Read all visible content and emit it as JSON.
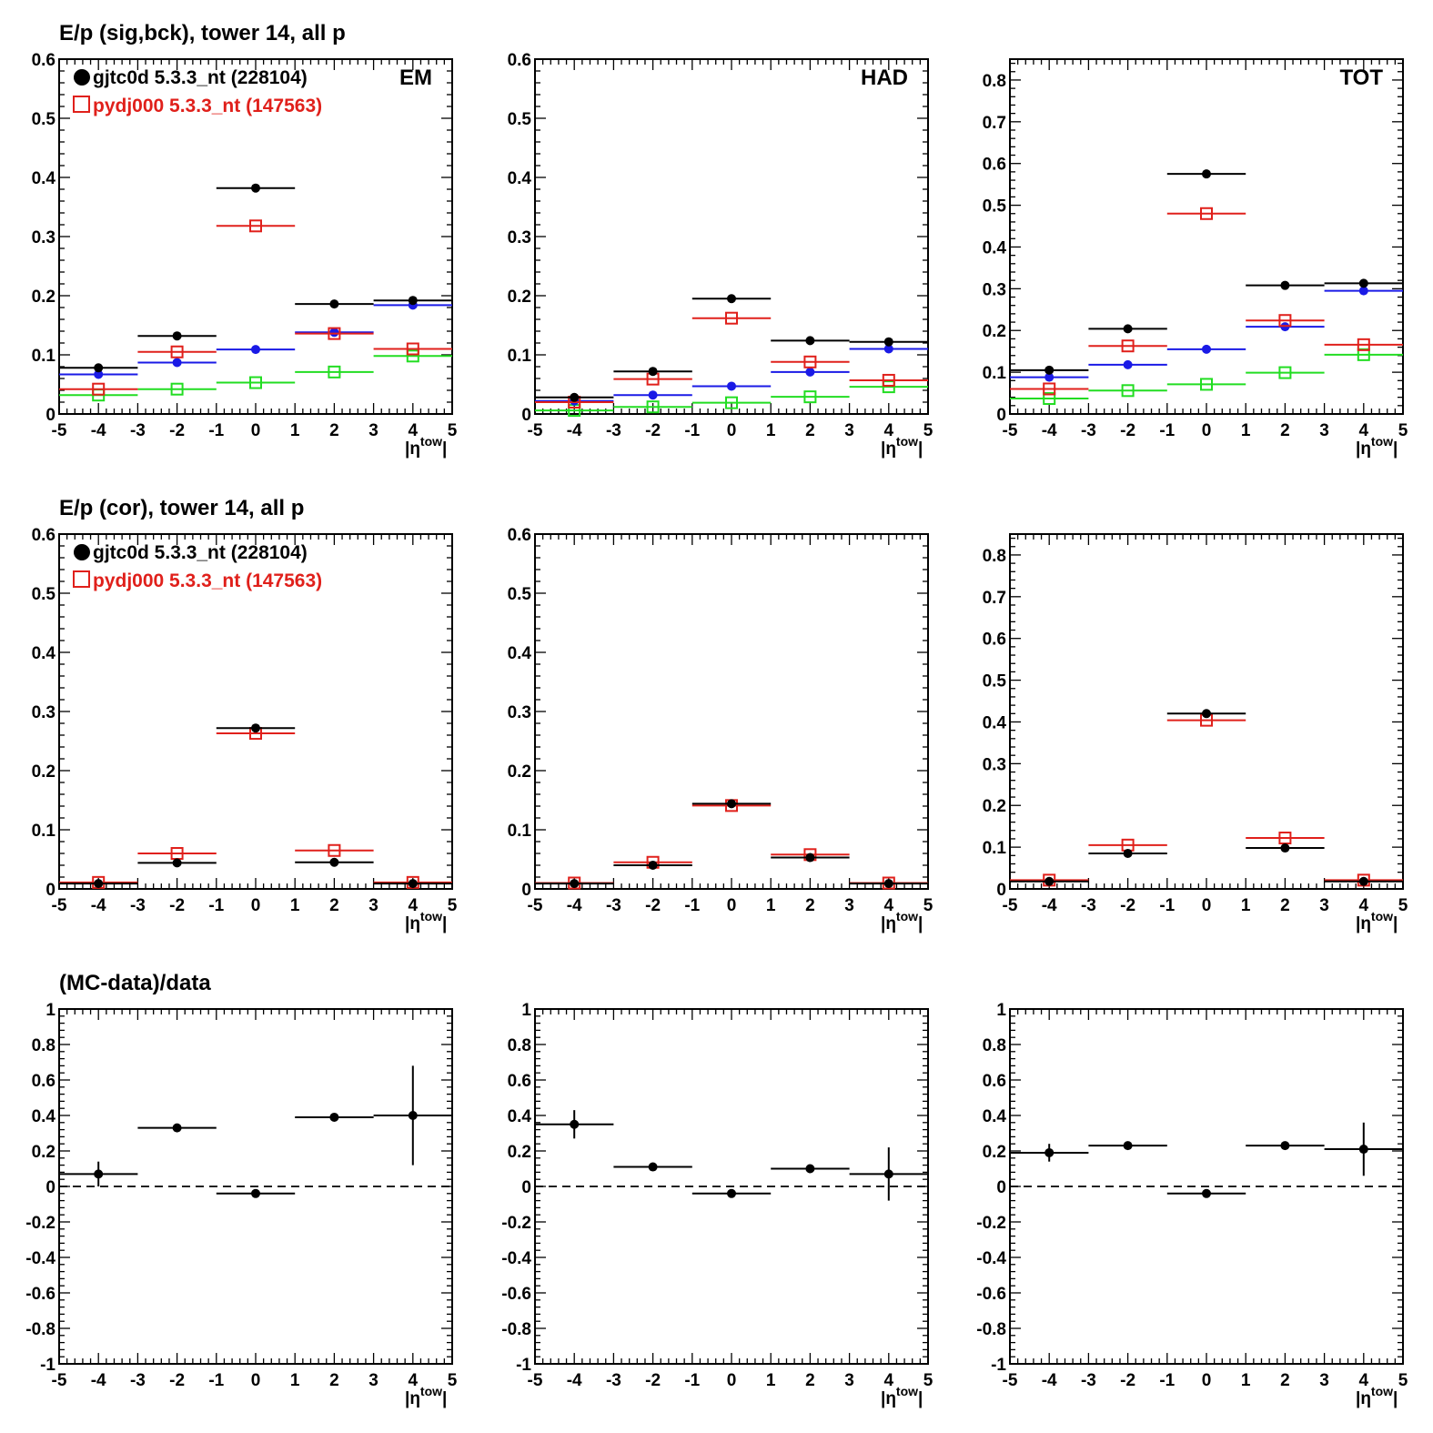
{
  "figure": {
    "row_titles": [
      "E/p (sig,bck), tower 14, all p",
      "E/p (cor), tower 14, all p",
      "(MC-data)/data"
    ],
    "legend": {
      "data_label": "gjtc0d 5.3.3_nt (228104)",
      "mc_label": "pydj000 5.3.3_nt (147563)"
    },
    "panel_labels": [
      "EM",
      "HAD",
      "TOT"
    ],
    "x_axis": {
      "label_main": "|η",
      "label_sup": "tow",
      "label_end": "|",
      "ticks": [
        "-5",
        "-4",
        "-3",
        "-2",
        "-1",
        "0",
        "1",
        "2",
        "3",
        "4",
        "5"
      ],
      "range": [
        -5,
        5
      ]
    },
    "colors": {
      "data": "#000000",
      "mc": "#e0201b",
      "blue": "#1a1ae6",
      "green": "#22dd22",
      "reference_line": "#000000"
    }
  },
  "chart_data": [
    {
      "type": "scatter",
      "row": 0,
      "col": 0,
      "panel_label": "EM",
      "ylim": [
        0,
        0.6
      ],
      "yticks": [
        "0",
        "0.1",
        "0.2",
        "0.3",
        "0.4",
        "0.5",
        "0.6"
      ],
      "x": [
        -4,
        -2,
        0,
        2,
        4
      ],
      "xerr": 1,
      "series": [
        {
          "name": "gjtc0d 5.3.3_nt (228104)",
          "style": "dot",
          "color": "black",
          "values": [
            0.078,
            0.132,
            0.382,
            0.186,
            0.192
          ]
        },
        {
          "name": "pydj000 5.3.3_nt (147563)",
          "style": "open-square",
          "color": "red",
          "values": [
            0.042,
            0.105,
            0.318,
            0.136,
            0.11
          ]
        },
        {
          "style": "dot",
          "color": "blue",
          "values": [
            0.067,
            0.087,
            0.109,
            0.138,
            0.184
          ]
        },
        {
          "style": "open-square",
          "color": "green",
          "values": [
            0.032,
            0.042,
            0.053,
            0.071,
            0.098
          ]
        }
      ]
    },
    {
      "type": "scatter",
      "row": 0,
      "col": 1,
      "panel_label": "HAD",
      "ylim": [
        0,
        0.6
      ],
      "yticks": [
        "0",
        "0.1",
        "0.2",
        "0.3",
        "0.4",
        "0.5",
        "0.6"
      ],
      "x": [
        -4,
        -2,
        0,
        2,
        4
      ],
      "xerr": 1,
      "series": [
        {
          "style": "dot",
          "color": "black",
          "values": [
            0.028,
            0.072,
            0.195,
            0.124,
            0.122
          ]
        },
        {
          "style": "open-square",
          "color": "red",
          "values": [
            0.02,
            0.059,
            0.162,
            0.088,
            0.057
          ]
        },
        {
          "style": "dot",
          "color": "blue",
          "values": [
            0.022,
            0.032,
            0.047,
            0.071,
            0.11
          ]
        },
        {
          "style": "open-square",
          "color": "green",
          "values": [
            0.006,
            0.012,
            0.019,
            0.029,
            0.046
          ]
        }
      ]
    },
    {
      "type": "scatter",
      "row": 0,
      "col": 2,
      "panel_label": "TOT",
      "ylim": [
        0,
        0.85
      ],
      "yticks": [
        "0",
        "0.1",
        "0.2",
        "0.3",
        "0.4",
        "0.5",
        "0.6",
        "0.7",
        "0.8"
      ],
      "x": [
        -4,
        -2,
        0,
        2,
        4
      ],
      "xerr": 1,
      "series": [
        {
          "style": "dot",
          "color": "black",
          "values": [
            0.105,
            0.204,
            0.575,
            0.308,
            0.313
          ]
        },
        {
          "style": "open-square",
          "color": "red",
          "values": [
            0.06,
            0.163,
            0.48,
            0.224,
            0.166
          ]
        },
        {
          "style": "dot",
          "color": "blue",
          "values": [
            0.088,
            0.118,
            0.155,
            0.209,
            0.295
          ]
        },
        {
          "style": "open-square",
          "color": "green",
          "values": [
            0.037,
            0.056,
            0.071,
            0.099,
            0.142
          ]
        }
      ]
    },
    {
      "type": "scatter",
      "row": 1,
      "col": 0,
      "ylim": [
        0,
        0.6
      ],
      "yticks": [
        "0",
        "0.1",
        "0.2",
        "0.3",
        "0.4",
        "0.5",
        "0.6"
      ],
      "x": [
        -4,
        -2,
        0,
        2,
        4
      ],
      "xerr": 1,
      "series": [
        {
          "name": "gjtc0d 5.3.3_nt (228104)",
          "style": "dot",
          "color": "black",
          "values": [
            0.009,
            0.044,
            0.272,
            0.045,
            0.009
          ]
        },
        {
          "name": "pydj000 5.3.3_nt (147563)",
          "style": "open-square",
          "color": "red",
          "values": [
            0.011,
            0.06,
            0.263,
            0.065,
            0.011
          ]
        }
      ]
    },
    {
      "type": "scatter",
      "row": 1,
      "col": 1,
      "ylim": [
        0,
        0.6
      ],
      "yticks": [
        "0",
        "0.1",
        "0.2",
        "0.3",
        "0.4",
        "0.5",
        "0.6"
      ],
      "x": [
        -4,
        -2,
        0,
        2,
        4
      ],
      "xerr": 1,
      "series": [
        {
          "style": "dot",
          "color": "black",
          "values": [
            0.009,
            0.04,
            0.144,
            0.053,
            0.009
          ]
        },
        {
          "style": "open-square",
          "color": "red",
          "values": [
            0.01,
            0.045,
            0.141,
            0.058,
            0.01
          ]
        }
      ]
    },
    {
      "type": "scatter",
      "row": 1,
      "col": 2,
      "ylim": [
        0,
        0.85
      ],
      "yticks": [
        "0",
        "0.1",
        "0.2",
        "0.3",
        "0.4",
        "0.5",
        "0.6",
        "0.7",
        "0.8"
      ],
      "x": [
        -4,
        -2,
        0,
        2,
        4
      ],
      "xerr": 1,
      "series": [
        {
          "style": "dot",
          "color": "black",
          "values": [
            0.018,
            0.085,
            0.42,
            0.098,
            0.018
          ]
        },
        {
          "style": "open-square",
          "color": "red",
          "values": [
            0.021,
            0.105,
            0.404,
            0.122,
            0.021
          ]
        }
      ]
    },
    {
      "type": "scatter",
      "row": 2,
      "col": 0,
      "ylim": [
        -1,
        1
      ],
      "yticks": [
        "-1",
        "-0.8",
        "-0.6",
        "-0.4",
        "-0.2",
        "0",
        "0.2",
        "0.4",
        "0.6",
        "0.8",
        "1"
      ],
      "reference_line": 0,
      "x": [
        -4,
        -2,
        0,
        2,
        4
      ],
      "xerr": 1,
      "series": [
        {
          "style": "dot",
          "color": "black",
          "values": [
            0.07,
            0.33,
            -0.04,
            0.39,
            0.4
          ],
          "yerr": [
            0.07,
            0.01,
            0.01,
            0.01,
            0.28
          ]
        }
      ]
    },
    {
      "type": "scatter",
      "row": 2,
      "col": 1,
      "ylim": [
        -1,
        1
      ],
      "yticks": [
        "-1",
        "-0.8",
        "-0.6",
        "-0.4",
        "-0.2",
        "0",
        "0.2",
        "0.4",
        "0.6",
        "0.8",
        "1"
      ],
      "reference_line": 0,
      "x": [
        -4,
        -2,
        0,
        2,
        4
      ],
      "xerr": 1,
      "series": [
        {
          "style": "dot",
          "color": "black",
          "values": [
            0.35,
            0.11,
            -0.04,
            0.1,
            0.07
          ],
          "yerr": [
            0.08,
            0.01,
            0.01,
            0.01,
            0.15
          ]
        }
      ]
    },
    {
      "type": "scatter",
      "row": 2,
      "col": 2,
      "ylim": [
        -1,
        1
      ],
      "yticks": [
        "-1",
        "-0.8",
        "-0.6",
        "-0.4",
        "-0.2",
        "0",
        "0.2",
        "0.4",
        "0.6",
        "0.8",
        "1"
      ],
      "reference_line": 0,
      "x": [
        -4,
        -2,
        0,
        2,
        4
      ],
      "xerr": 1,
      "series": [
        {
          "style": "dot",
          "color": "black",
          "values": [
            0.19,
            0.23,
            -0.04,
            0.23,
            0.21
          ],
          "yerr": [
            0.05,
            0.01,
            0.01,
            0.01,
            0.15
          ]
        }
      ]
    }
  ]
}
